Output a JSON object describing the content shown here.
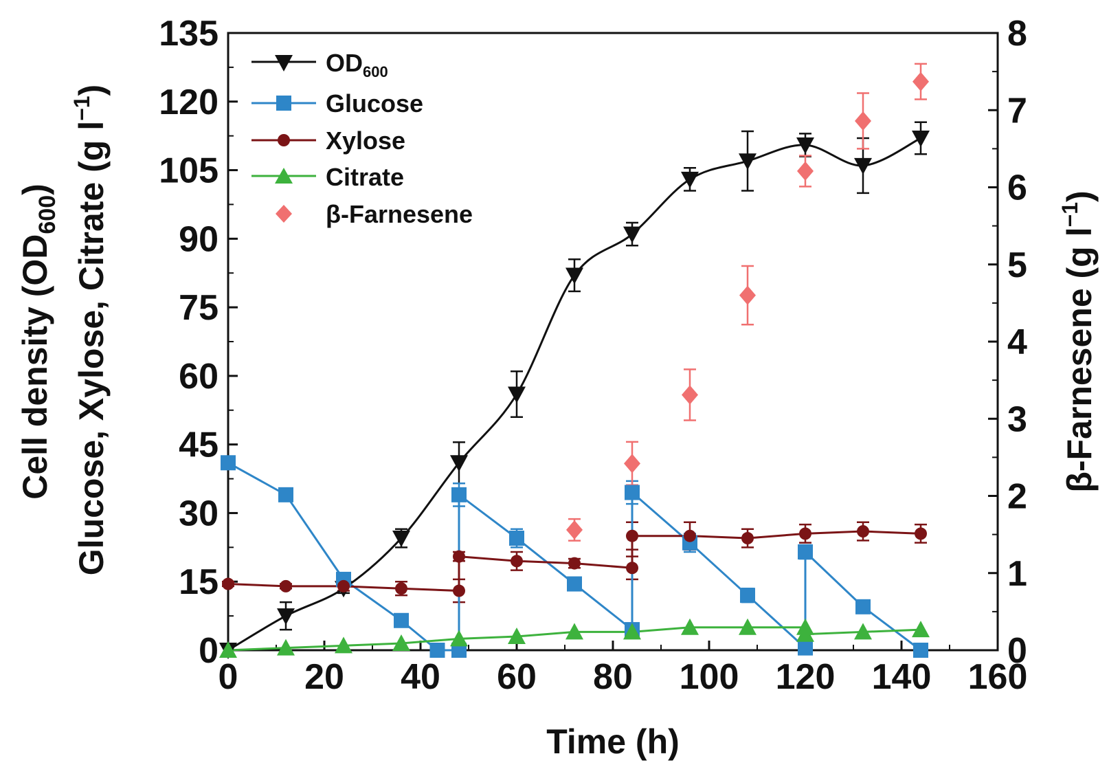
{
  "chart_data": {
    "type": "line",
    "xlabel": "Time (h)",
    "ylabel_left": {
      "line1": {
        "before": "Cell density (OD",
        "sub": "600",
        "after": ")"
      },
      "line2": {
        "before": "Glucose, Xylose, Citrate (g l",
        "sup": "−1",
        "after": ")"
      }
    },
    "ylabel_right": {
      "before": "β-Farnesene (g l",
      "sup": "−1",
      "after": ")"
    },
    "xlim": [
      0,
      160
    ],
    "ylim_left": [
      0,
      135
    ],
    "ylim_right": [
      0,
      8
    ],
    "x_ticks": [
      "0",
      "20",
      "40",
      "60",
      "80",
      "100",
      "120",
      "140",
      "160"
    ],
    "y_left_ticks": [
      "0",
      "15",
      "30",
      "45",
      "60",
      "75",
      "90",
      "105",
      "120",
      "135"
    ],
    "y_right_ticks": [
      "0",
      "1",
      "2",
      "3",
      "4",
      "5",
      "6",
      "7",
      "8"
    ],
    "legend_position": "top-left",
    "series": [
      {
        "name": "OD600",
        "label_main": "OD",
        "label_sub": "600",
        "color": "#111111",
        "marker": "triangle-down",
        "axis": "left",
        "line": "smooth",
        "points": [
          [
            0,
            0,
            0
          ],
          [
            12,
            7.5,
            3
          ],
          [
            24,
            13.5,
            1
          ],
          [
            36,
            24.5,
            2
          ],
          [
            48,
            41,
            4.5
          ],
          [
            60,
            56,
            5
          ],
          [
            72,
            82,
            3.5
          ],
          [
            84,
            91,
            2.5
          ],
          [
            96,
            103,
            2.5
          ],
          [
            108,
            107,
            6.5
          ],
          [
            120,
            110.5,
            2.5
          ],
          [
            132,
            106,
            6
          ],
          [
            144,
            112,
            3.5
          ]
        ]
      },
      {
        "name": "Glucose",
        "label_main": "Glucose",
        "label_sub": "",
        "color": "#2E86C8",
        "marker": "square",
        "axis": "left",
        "line": "straight",
        "points": [
          [
            0,
            41,
            1
          ],
          [
            12,
            34,
            1
          ],
          [
            24,
            15.5,
            1
          ],
          [
            36,
            6.5,
            1
          ],
          [
            43.5,
            0,
            0
          ],
          [
            48,
            0,
            0
          ],
          [
            48,
            34,
            2.5
          ],
          [
            60,
            24.5,
            2
          ],
          [
            72,
            14.5,
            1
          ],
          [
            84,
            4.5,
            1
          ],
          [
            84,
            34.5,
            2.5
          ],
          [
            96,
            23.5,
            2
          ],
          [
            108,
            12,
            1.5
          ],
          [
            120,
            0.5,
            0
          ],
          [
            120,
            21.5,
            1.5
          ],
          [
            132,
            9.5,
            1
          ],
          [
            144,
            0,
            0
          ]
        ]
      },
      {
        "name": "Xylose",
        "label_main": "Xylose",
        "label_sub": "",
        "color": "#7B1416",
        "marker": "circle",
        "axis": "left",
        "line": "straight",
        "points": [
          [
            0,
            14.5,
            0.5
          ],
          [
            12,
            14,
            0.5
          ],
          [
            24,
            14,
            1
          ],
          [
            36,
            13.5,
            1.5
          ],
          [
            48,
            13,
            2.5
          ],
          [
            48,
            20.5,
            1
          ],
          [
            60,
            19.5,
            2
          ],
          [
            72,
            19,
            1
          ],
          [
            84,
            18,
            2.5
          ],
          [
            84,
            25,
            3
          ],
          [
            96,
            25,
            3
          ],
          [
            108,
            24.5,
            2
          ],
          [
            120,
            25.5,
            2
          ],
          [
            132,
            26,
            2
          ],
          [
            144,
            25.5,
            2
          ]
        ]
      },
      {
        "name": "Citrate",
        "label_main": "Citrate",
        "label_sub": "",
        "color": "#3DB23D",
        "marker": "triangle-up",
        "axis": "left",
        "line": "straight",
        "points": [
          [
            0,
            0,
            0
          ],
          [
            12,
            0.5,
            0
          ],
          [
            24,
            1,
            0
          ],
          [
            36,
            1.5,
            0
          ],
          [
            48,
            2.5,
            0
          ],
          [
            60,
            3,
            0
          ],
          [
            72,
            4,
            0
          ],
          [
            84,
            4,
            0
          ],
          [
            96,
            5,
            0
          ],
          [
            108,
            5,
            0
          ],
          [
            120,
            5,
            0
          ],
          [
            120,
            3.5,
            0
          ],
          [
            132,
            4,
            0
          ],
          [
            144,
            4.5,
            0
          ]
        ]
      },
      {
        "name": "β-Farnesene",
        "label_main": "β-Farnesene",
        "label_sub": "",
        "color": "#F07070",
        "marker": "diamond",
        "axis": "right",
        "line": "none",
        "points": [
          [
            72,
            1.56,
            0.14
          ],
          [
            84,
            2.42,
            0.28
          ],
          [
            96,
            3.31,
            0.33
          ],
          [
            108,
            4.6,
            0.38
          ],
          [
            120,
            6.21,
            0.2
          ],
          [
            132,
            6.86,
            0.36
          ],
          [
            144,
            7.37,
            0.23
          ]
        ]
      }
    ]
  }
}
